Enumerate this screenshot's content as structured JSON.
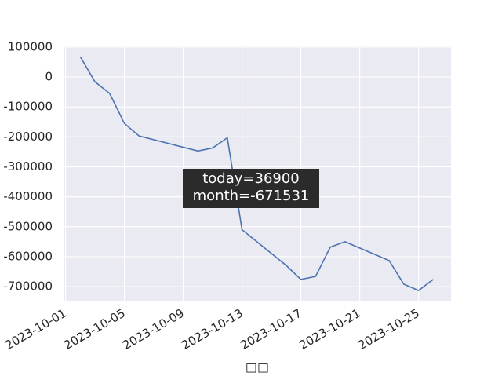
{
  "chart_data": {
    "type": "line",
    "x_label": "□□",
    "annotation": [
      "today=36900",
      "month=-671531"
    ],
    "x": [
      "2023-10-02",
      "2023-10-03",
      "2023-10-04",
      "2023-10-05",
      "2023-10-06",
      "2023-10-10",
      "2023-10-11",
      "2023-10-12",
      "2023-10-13",
      "2023-10-16",
      "2023-10-17",
      "2023-10-18",
      "2023-10-19",
      "2023-10-20",
      "2023-10-23",
      "2023-10-24",
      "2023-10-25",
      "2023-10-26"
    ],
    "series": [
      {
        "color": "#4c72b0",
        "values": [
          68000,
          -16000,
          -55000,
          -155000,
          -197000,
          -247000,
          -237000,
          -203000,
          -510000,
          -629000,
          -676000,
          -666000,
          -568000,
          -550000,
          -613000,
          -692000,
          -713000,
          -676000
        ]
      }
    ],
    "xlim": [
      "2023-09-30T22:00:00Z",
      "2023-10-27T05:00:00Z"
    ],
    "xticks": [
      "2023-10-01",
      "2023-10-05",
      "2023-10-09",
      "2023-10-13",
      "2023-10-17",
      "2023-10-21",
      "2023-10-25"
    ],
    "ylim": [
      -747000,
      105000
    ],
    "yticks": [
      100000,
      0,
      -100000,
      -200000,
      -300000,
      -400000,
      -500000,
      -600000,
      -700000
    ],
    "grid": true
  }
}
